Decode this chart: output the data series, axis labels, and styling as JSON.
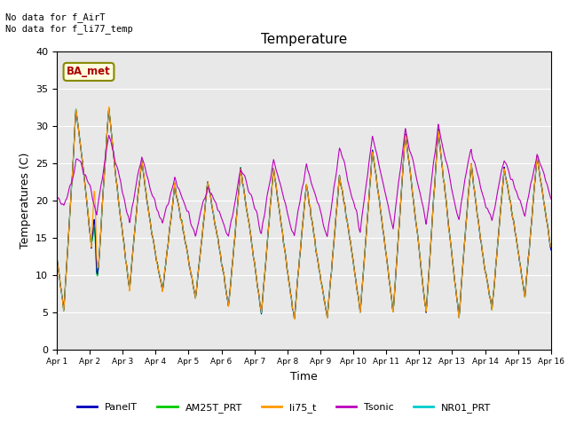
{
  "title": "Temperature",
  "ylabel": "Temperatures (C)",
  "xlabel": "Time",
  "ylim": [
    0,
    40
  ],
  "xlim_days": 15,
  "annotation_text": "No data for f_AirT\nNo data for f_li77_temp",
  "box_label": "BA_met",
  "series_names": [
    "PanelT",
    "AM25T_PRT",
    "li75_t",
    "Tsonic",
    "NR01_PRT"
  ],
  "series_colors": [
    "#0000bb",
    "#00cc00",
    "#ff9900",
    "#bb00bb",
    "#00cccc"
  ],
  "bg_color": "#e8e8e8",
  "x_tick_labels": [
    "Apr 1",
    "Apr 2",
    "Apr 3",
    "Apr 4",
    "Apr 5",
    "Apr 6",
    "Apr 7",
    "Apr 8",
    "Apr 9",
    "Apr 10",
    "Apr 11",
    "Apr 12",
    "Apr 13",
    "Apr 14",
    "Apr 15",
    "Apr 16"
  ],
  "figsize": [
    6.4,
    4.8
  ],
  "dpi": 100
}
